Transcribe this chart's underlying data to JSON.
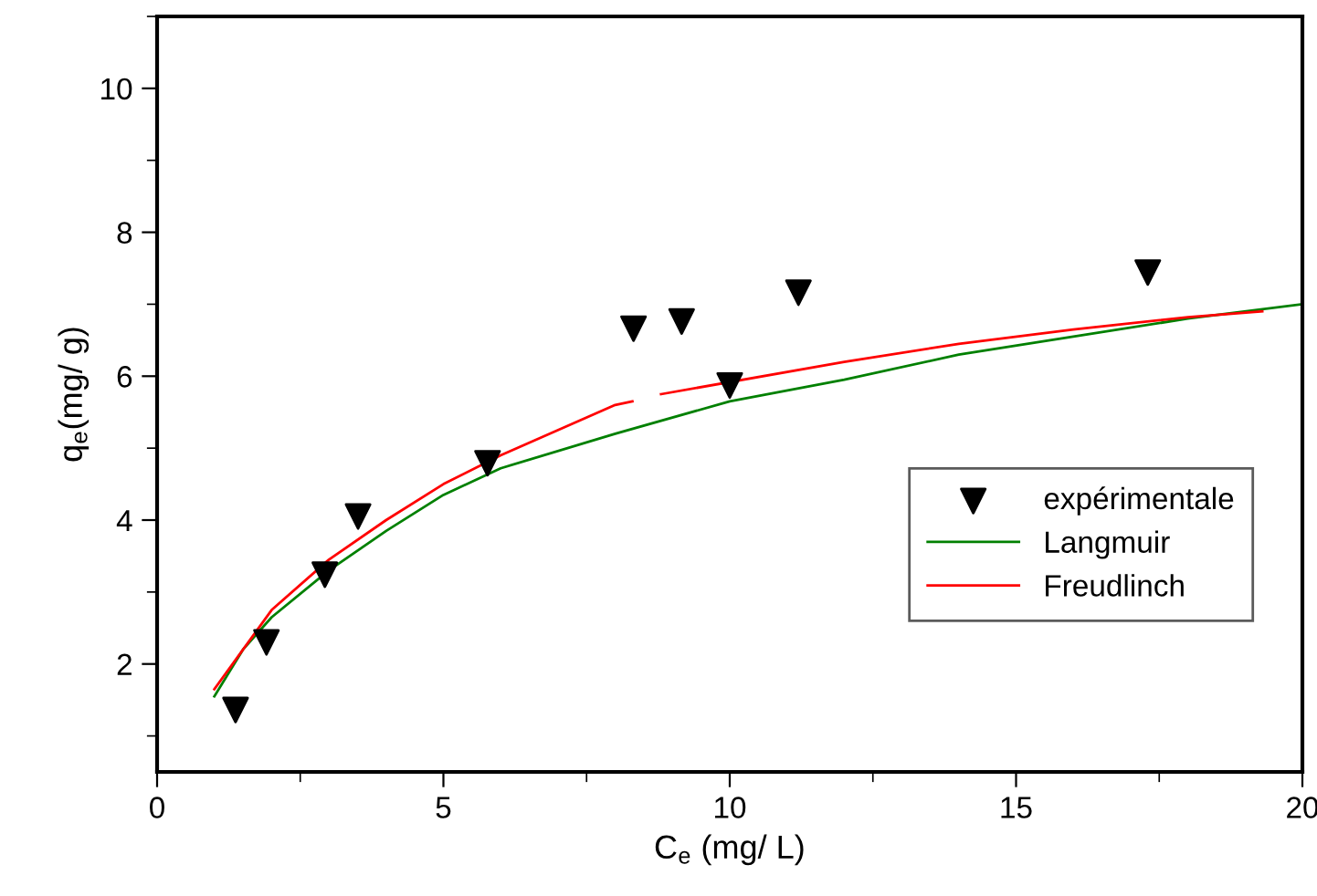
{
  "chart_data": {
    "type": "scatter",
    "xlabel": "C$_{e}$ (mg/ L)",
    "ylabel": "q$_{e}$(mg/ g)",
    "xlim": [
      0,
      20
    ],
    "xticks": [
      0,
      5,
      10,
      15,
      20
    ],
    "ylim": [
      0.5,
      11
    ],
    "yticks": [
      2,
      4,
      6,
      8,
      10
    ],
    "grid": false,
    "legend": "bottom right",
    "series": [
      {
        "name": "expérimentale",
        "marker": "triangle",
        "color": "#000000",
        "x": [
          1.37,
          1.91,
          2.93,
          3.51,
          5.77,
          8.32,
          9.16,
          10.0,
          11.2,
          17.3
        ],
        "values": [
          1.36,
          2.3,
          3.24,
          4.05,
          4.79,
          6.66,
          6.76,
          5.87,
          7.16,
          7.44
        ]
      },
      {
        "name": "Langmuir",
        "type": "line",
        "marker": "none",
        "color": "#008000",
        "x": [
          1,
          1.5,
          2,
          3,
          4,
          5,
          6,
          8,
          10,
          12,
          14,
          16,
          18,
          20
        ],
        "values": [
          1.55,
          2.2,
          2.65,
          3.3,
          3.85,
          4.35,
          4.72,
          5.2,
          5.65,
          5.95,
          6.3,
          6.55,
          6.8,
          7.0
        ]
      },
      {
        "name": "Freudlinch",
        "type": "line",
        "marker": "none",
        "color": "#ff0000",
        "x": [
          1,
          2,
          3,
          4,
          5,
          6,
          8,
          8.3,
          8.5,
          8.8,
          12,
          14,
          16,
          18,
          19.3
        ],
        "values": [
          1.65,
          2.75,
          3.45,
          4.0,
          4.5,
          4.9,
          5.6,
          5.65,
          null,
          5.75,
          6.2,
          6.45,
          6.65,
          6.82,
          6.9
        ]
      }
    ]
  }
}
